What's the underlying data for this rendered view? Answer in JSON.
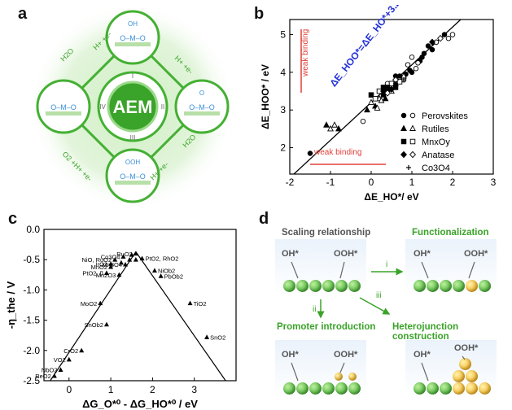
{
  "panel_labels": {
    "a": "a",
    "b": "b",
    "c": "c",
    "d": "d"
  },
  "panel_a": {
    "center": "AEM",
    "steps": [
      {
        "label": "H+ +e-"
      },
      {
        "label": "H+ +e-"
      },
      {
        "label": "H2O"
      },
      {
        "label": "H+ +e-"
      },
      {
        "label": "O2 +H+ +e-"
      },
      {
        "label": "H2O"
      }
    ],
    "intermediates": [
      "OH",
      "O",
      "OOH",
      ""
    ],
    "roman": [
      "I",
      "II",
      "III",
      "IV"
    ]
  },
  "chart_data": [
    {
      "type": "scatter",
      "id": "b",
      "xlabel": "ΔE_HO*/ eV",
      "ylabel": "ΔE_HOO* / eV",
      "xlim": [
        -2,
        3
      ],
      "ylim": [
        1.3,
        5.4
      ],
      "xticks": [
        "-2",
        "-1",
        "0",
        "1",
        "2",
        "3"
      ],
      "yticks": [
        "2",
        "3",
        "4",
        "5"
      ],
      "fit_label": "ΔE_HOO*=ΔE_HO*+3.20 eV",
      "fit": {
        "slope": 1,
        "intercept": 3.2
      },
      "annotations": [
        "weak binding",
        "weak binding"
      ],
      "legend": [
        "Perovskites",
        "Rutiles",
        "MnxOy",
        "Anatase",
        "Co3O4"
      ],
      "series": [
        {
          "name": "Perovskites",
          "marker": "circle",
          "values": [
            [
              -1.5,
              1.85
            ],
            [
              -0.2,
              2.7
            ],
            [
              0.6,
              3.9
            ],
            [
              1.1,
              4.1
            ],
            [
              1.2,
              4.3
            ],
            [
              0.9,
              4.2
            ],
            [
              1.0,
              4.0
            ],
            [
              0.8,
              3.8
            ],
            [
              1.3,
              4.5
            ],
            [
              0.5,
              3.6
            ],
            [
              0.3,
              3.4
            ],
            [
              0.4,
              3.7
            ],
            [
              0.7,
              3.9
            ],
            [
              1.0,
              4.4
            ],
            [
              1.4,
              4.7
            ],
            [
              1.6,
              4.8
            ],
            [
              1.8,
              5.0
            ],
            [
              2.0,
              5.0
            ],
            [
              0.85,
              3.95
            ],
            [
              1.15,
              4.25
            ],
            [
              0.95,
              4.05
            ],
            [
              0.6,
              3.7
            ],
            [
              1.5,
              4.6
            ],
            [
              1.9,
              4.9
            ],
            [
              1.25,
              4.4
            ]
          ]
        },
        {
          "name": "Rutiles",
          "marker": "triangle",
          "values": [
            [
              -1.1,
              2.6
            ],
            [
              -0.9,
              2.6
            ],
            [
              -0.8,
              2.5
            ],
            [
              -1.0,
              2.5
            ],
            [
              0.1,
              3.1
            ],
            [
              0.2,
              3.3
            ],
            [
              0.3,
              3.4
            ],
            [
              0.0,
              3.2
            ],
            [
              0.4,
              3.5
            ],
            [
              0.5,
              3.5
            ],
            [
              0.6,
              3.7
            ],
            [
              0.7,
              3.8
            ],
            [
              -0.1,
              3.0
            ],
            [
              0.25,
              3.25
            ],
            [
              0.45,
              3.55
            ],
            [
              0.8,
              3.9
            ],
            [
              0.35,
              3.3
            ],
            [
              0.15,
              3.05
            ]
          ]
        },
        {
          "name": "MnxOy",
          "marker": "square",
          "values": [
            [
              0.0,
              3.4
            ],
            [
              0.2,
              3.5
            ],
            [
              0.3,
              3.6
            ],
            [
              0.5,
              3.7
            ],
            [
              0.6,
              3.6
            ],
            [
              0.1,
              3.3
            ],
            [
              0.4,
              3.6
            ],
            [
              0.7,
              3.75
            ]
          ]
        },
        {
          "name": "Anatase",
          "marker": "diamond",
          "values": [
            [
              0.3,
              3.5
            ],
            [
              0.4,
              3.45
            ],
            [
              0.5,
              3.55
            ],
            [
              0.6,
              3.8
            ],
            [
              1.5,
              4.8
            ],
            [
              1.7,
              4.9
            ]
          ]
        },
        {
          "name": "Co3O4",
          "marker": "plus",
          "values": [
            [
              0.6,
              3.7
            ],
            [
              0.8,
              3.8
            ]
          ]
        }
      ]
    },
    {
      "type": "scatter",
      "id": "c",
      "xlabel": "ΔG_O*⁰ - ΔG_HO*⁰ / eV",
      "ylabel": "-η_the / V",
      "xlim": [
        -0.6,
        4.0
      ],
      "ylim": [
        -2.5,
        0.0
      ],
      "xticks": [
        "0",
        "1",
        "2",
        "3"
      ],
      "yticks": [
        "0.0",
        "-0.5",
        "-1.0",
        "-1.5",
        "-2.0",
        "-2.5"
      ],
      "volcano": {
        "apex": [
          1.6,
          -0.37
        ]
      },
      "points": [
        {
          "label": "Co3O4",
          "x": 1.3,
          "y": -0.45
        },
        {
          "label": "RuO2",
          "x": 1.6,
          "y": -0.4
        },
        {
          "label": "NiO, RuO2",
          "x": 1.1,
          "y": -0.5
        },
        {
          "label": "PtO2, RhO2",
          "x": 1.75,
          "y": -0.48
        },
        {
          "label": "IrO2",
          "x": 1.0,
          "y": -0.57
        },
        {
          "label": "MnO2",
          "x": 1.0,
          "y": -0.62
        },
        {
          "label": "Mn3O4",
          "x": 1.35,
          "y": -0.58
        },
        {
          "label": "PtO2, β",
          "x": 0.9,
          "y": -0.72
        },
        {
          "label": "Mn2O3",
          "x": 1.2,
          "y": -0.75
        },
        {
          "label": "NiOb2",
          "x": 2.05,
          "y": -0.68
        },
        {
          "label": "PbOb2",
          "x": 2.2,
          "y": -0.77
        },
        {
          "label": "MoO2",
          "x": 0.75,
          "y": -1.22
        },
        {
          "label": "SnOb2",
          "x": 0.9,
          "y": -1.57
        },
        {
          "label": "TiO2",
          "x": 2.9,
          "y": -1.22
        },
        {
          "label": "SnO2",
          "x": 3.3,
          "y": -1.78
        },
        {
          "label": "CrO2",
          "x": 0.3,
          "y": -2.0
        },
        {
          "label": "VO2",
          "x": 0.0,
          "y": -2.15
        },
        {
          "label": "NbO2",
          "x": -0.2,
          "y": -2.32
        },
        {
          "label": "ReO2",
          "x": -0.35,
          "y": -2.42
        },
        {
          "label": "",
          "x": 1.5,
          "y": -0.42
        },
        {
          "label": "",
          "x": 1.45,
          "y": -0.5
        },
        {
          "label": "",
          "x": 1.25,
          "y": -0.55
        },
        {
          "label": "",
          "x": 1.6,
          "y": -0.5
        }
      ]
    }
  ],
  "panel_d": {
    "boxes": [
      {
        "title": "Scaling relationship",
        "color": "#555",
        "labels": [
          "OH*",
          "OOH*"
        ]
      },
      {
        "title": "Functionalization",
        "color": "#3aa329",
        "labels": [
          "OH*",
          "OOH*"
        ]
      },
      {
        "title": "Promoter introduction",
        "color": "#3aa329",
        "labels": [
          "OH*",
          "OOH*"
        ]
      },
      {
        "title": "Heterojunction construction",
        "color": "#3aa329",
        "labels": [
          "OH*",
          "OOH*"
        ]
      }
    ],
    "arrows": [
      "i",
      "ii",
      "iii"
    ]
  },
  "colors": {
    "green": "#3aa329",
    "blue": "#2432d8",
    "red": "#e0403a",
    "yellow": "#f4b62a"
  }
}
